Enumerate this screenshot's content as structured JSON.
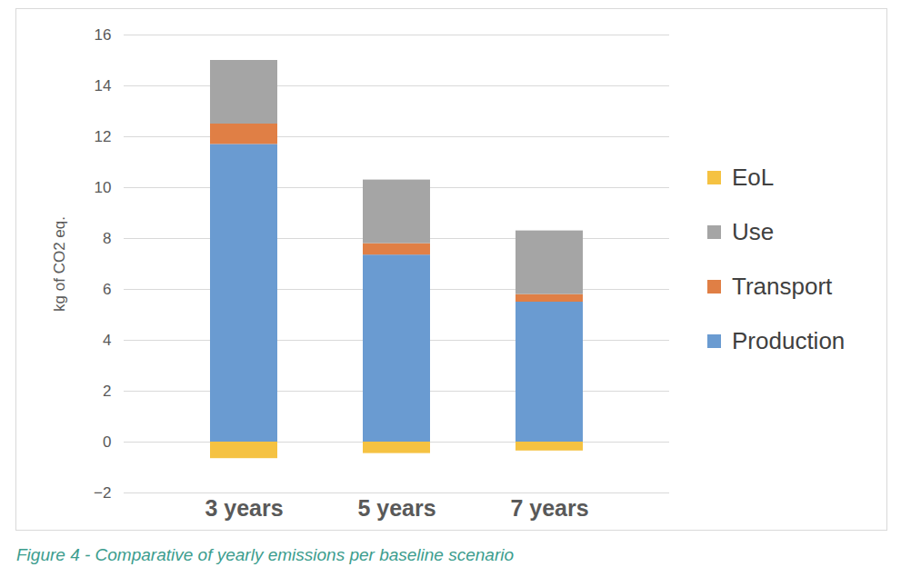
{
  "chart_data": {
    "type": "bar",
    "stacked": true,
    "caption": "Figure 4 - Comparative of yearly emissions per baseline scenario",
    "y_label": "kg of CO2 eq.",
    "categories": [
      "3 years",
      "5 years",
      "7 years"
    ],
    "series": [
      {
        "name": "EoL",
        "color": "#f5c242",
        "values": [
          -0.65,
          -0.45,
          -0.35
        ]
      },
      {
        "name": "Use",
        "color": "#a5a5a5",
        "values": [
          2.5,
          2.5,
          2.5
        ]
      },
      {
        "name": "Transport",
        "color": "#e07f45",
        "values": [
          0.8,
          0.45,
          0.3
        ]
      },
      {
        "name": "Production",
        "color": "#6a9bd1",
        "values": [
          11.7,
          7.35,
          5.5
        ]
      }
    ],
    "ylim": [
      -2,
      16
    ],
    "yticks": [
      -2,
      0,
      2,
      4,
      6,
      8,
      10,
      12,
      14,
      16
    ],
    "grid": true,
    "legend": "right"
  }
}
